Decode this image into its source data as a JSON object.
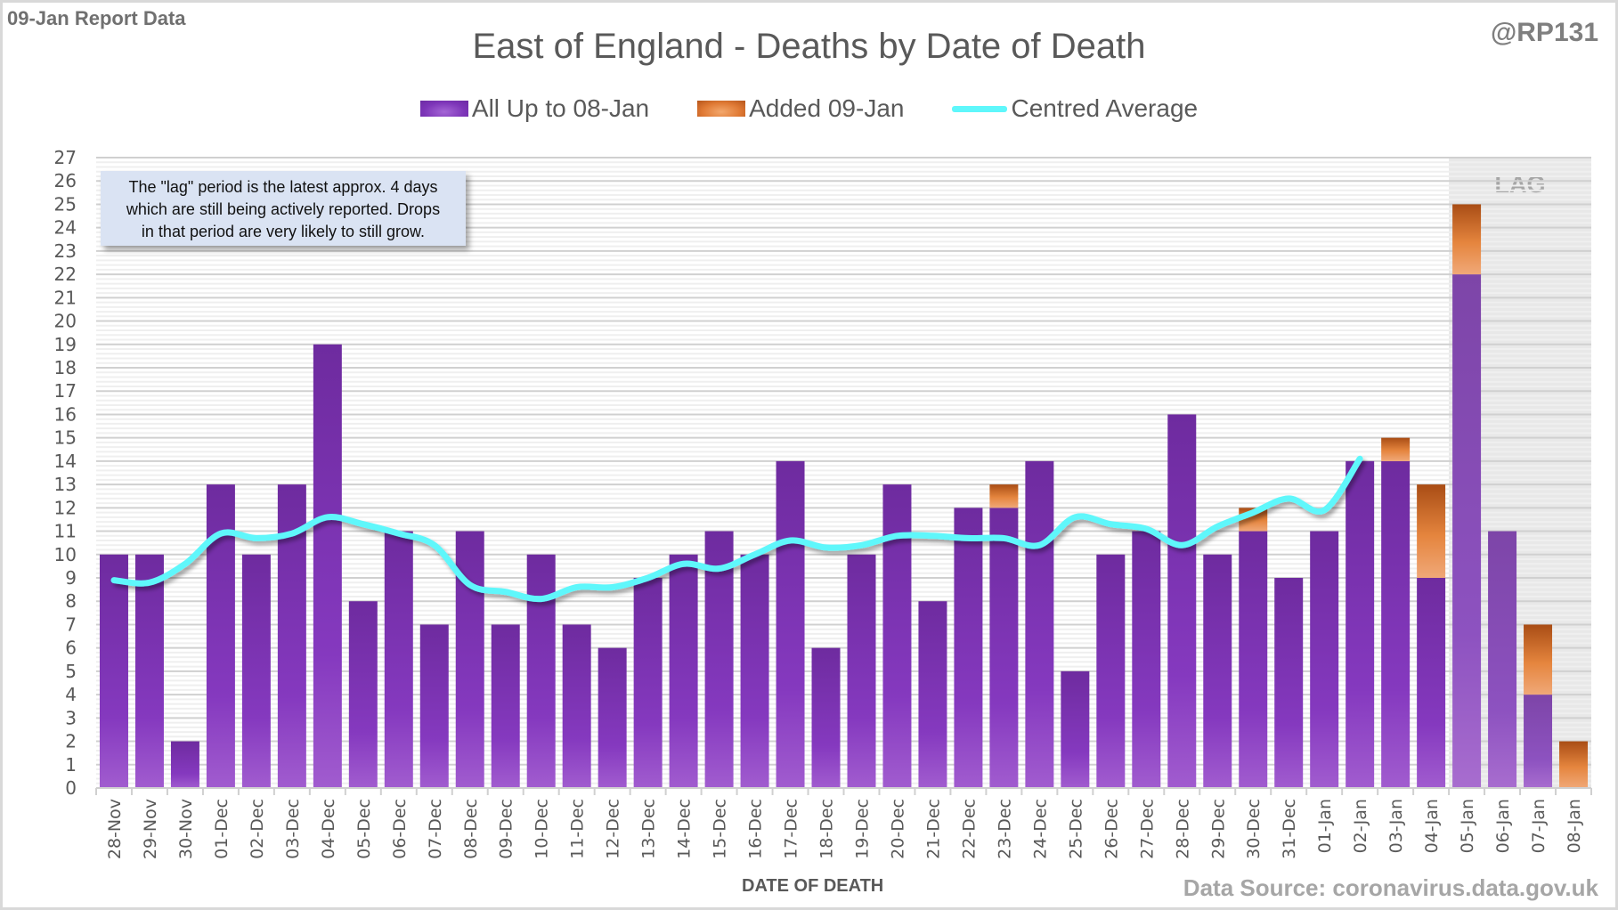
{
  "header": {
    "report_label": "09-Jan Report Data",
    "handle": "@RP131"
  },
  "note": {
    "line1": "The \"lag\" period is the latest approx. 4 days",
    "line2": "which are still being actively reported.  Drops",
    "line3": "in that period are very likely to still grow."
  },
  "footer": {
    "source": "Data Source: coronavirus.data.gov.uk"
  },
  "colors": {
    "purple": "#7a33b5",
    "orange": "#e07a35",
    "cyan": "#5ff7fb",
    "lag_shade": "#e8e8e8",
    "text": "#595959"
  },
  "chart_data": {
    "type": "bar",
    "stacked": true,
    "title": "East of England - Deaths by Date of Death",
    "xlabel": "DATE OF DEATH",
    "ylabel": "",
    "ylim": [
      0,
      27
    ],
    "yticks": [
      0,
      1,
      2,
      3,
      4,
      5,
      6,
      7,
      8,
      9,
      10,
      11,
      12,
      13,
      14,
      15,
      16,
      17,
      18,
      19,
      20,
      21,
      22,
      23,
      24,
      25,
      26,
      27
    ],
    "grid": true,
    "legend_position": "top-center",
    "categories": [
      "28-Nov",
      "29-Nov",
      "30-Nov",
      "01-Dec",
      "02-Dec",
      "03-Dec",
      "04-Dec",
      "05-Dec",
      "06-Dec",
      "07-Dec",
      "08-Dec",
      "09-Dec",
      "10-Dec",
      "11-Dec",
      "12-Dec",
      "13-Dec",
      "14-Dec",
      "15-Dec",
      "16-Dec",
      "17-Dec",
      "18-Dec",
      "19-Dec",
      "20-Dec",
      "21-Dec",
      "22-Dec",
      "23-Dec",
      "24-Dec",
      "25-Dec",
      "26-Dec",
      "27-Dec",
      "28-Dec",
      "29-Dec",
      "30-Dec",
      "31-Dec",
      "01-Jan",
      "02-Jan",
      "03-Jan",
      "04-Jan",
      "05-Jan",
      "06-Jan",
      "07-Jan",
      "08-Jan"
    ],
    "series": [
      {
        "name": "All Up to 08-Jan",
        "kind": "bar",
        "values": [
          10,
          10,
          2,
          13,
          10,
          13,
          19,
          8,
          11,
          7,
          11,
          7,
          10,
          7,
          6,
          9,
          10,
          11,
          10,
          14,
          6,
          10,
          13,
          8,
          12,
          12,
          14,
          5,
          10,
          11,
          16,
          10,
          11,
          9,
          11,
          14,
          14,
          9,
          22,
          11,
          4,
          0
        ]
      },
      {
        "name": "Added 09-Jan",
        "kind": "bar",
        "values": [
          0,
          0,
          0,
          0,
          0,
          0,
          0,
          0,
          0,
          0,
          0,
          0,
          0,
          0,
          0,
          0,
          0,
          0,
          0,
          0,
          0,
          0,
          0,
          0,
          0,
          1,
          0,
          0,
          0,
          0,
          0,
          0,
          1,
          0,
          0,
          0,
          1,
          4,
          3,
          0,
          3,
          2
        ]
      },
      {
        "name": "Centred Average",
        "kind": "line",
        "values": [
          8.9,
          8.8,
          9.6,
          10.9,
          10.7,
          10.9,
          11.6,
          11.3,
          10.9,
          10.4,
          8.7,
          8.4,
          8.1,
          8.6,
          8.6,
          9.0,
          9.6,
          9.4,
          10.0,
          10.6,
          10.3,
          10.4,
          10.8,
          10.8,
          10.7,
          10.7,
          10.4,
          11.6,
          11.3,
          11.1,
          10.4,
          11.2,
          11.8,
          12.4,
          11.9,
          14.1,
          null,
          null,
          null,
          null,
          null,
          null
        ]
      }
    ],
    "annotations": [
      {
        "text": "LAG",
        "region_categories": [
          "05-Jan",
          "08-Jan"
        ]
      }
    ]
  }
}
